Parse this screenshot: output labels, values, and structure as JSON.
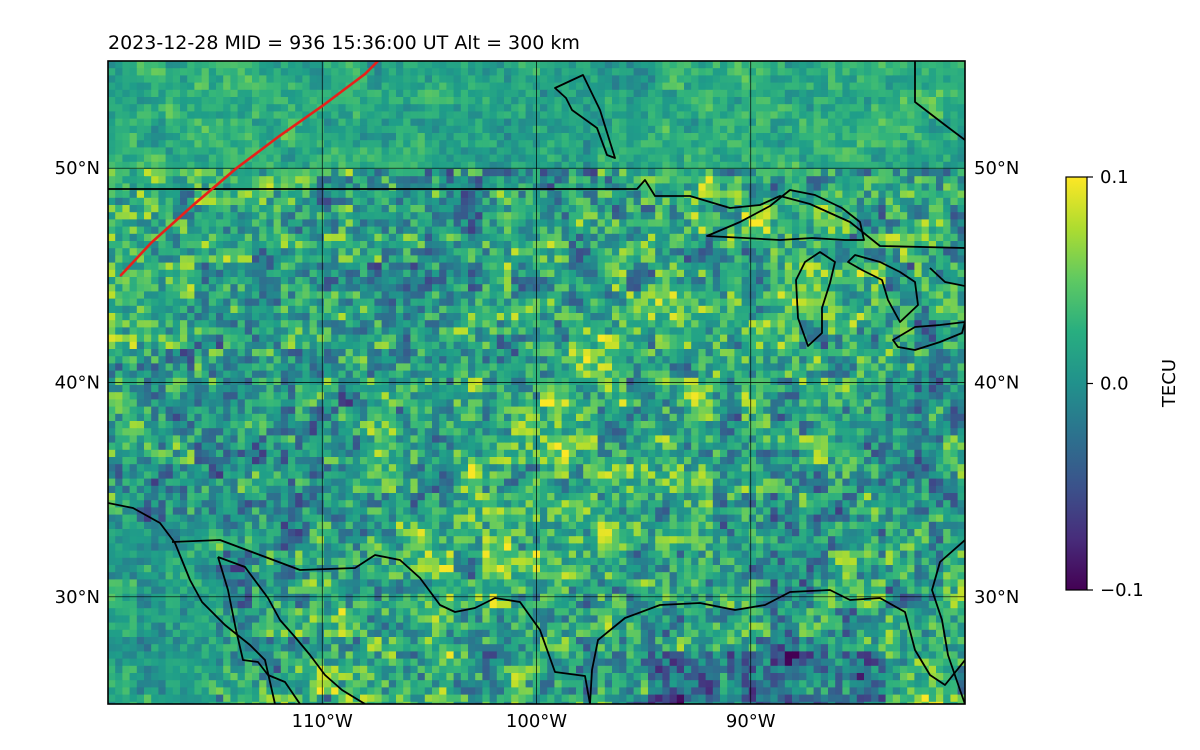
{
  "chart_data": {
    "type": "heatmap",
    "title": "2023-12-28  MID = 936    15:36:00  UT  Alt = 300 km",
    "lon_range": [
      -120,
      -80
    ],
    "lat_range": [
      25,
      55
    ],
    "x_ticks": [
      {
        "value": -110,
        "label": "110°W"
      },
      {
        "value": -100,
        "label": "100°W"
      },
      {
        "value": -90,
        "label": "90°W"
      }
    ],
    "y_ticks": [
      {
        "value": 50,
        "label": "50°N"
      },
      {
        "value": 40,
        "label": "40°N"
      },
      {
        "value": 30,
        "label": "30°N"
      }
    ],
    "grid": true,
    "colorbar": {
      "label": "TECU",
      "colormap": "viridis",
      "vmin": -0.1,
      "vmax": 0.1,
      "ticks": [
        {
          "value": 0.1,
          "label": "0.1"
        },
        {
          "value": 0.0,
          "label": "0.0"
        },
        {
          "value": -0.1,
          "label": "−0.1"
        }
      ]
    },
    "overlay_line": {
      "color": "#e8201a",
      "points": [
        [
          -119.4,
          45.0
        ],
        [
          -118.0,
          46.5
        ],
        [
          -116.0,
          48.3
        ],
        [
          -114.0,
          50.0
        ],
        [
          -112.0,
          51.5
        ],
        [
          -110.0,
          52.9
        ],
        [
          -108.0,
          54.4
        ],
        [
          -107.4,
          55.0
        ]
      ]
    },
    "coastline_color": "#000000"
  }
}
